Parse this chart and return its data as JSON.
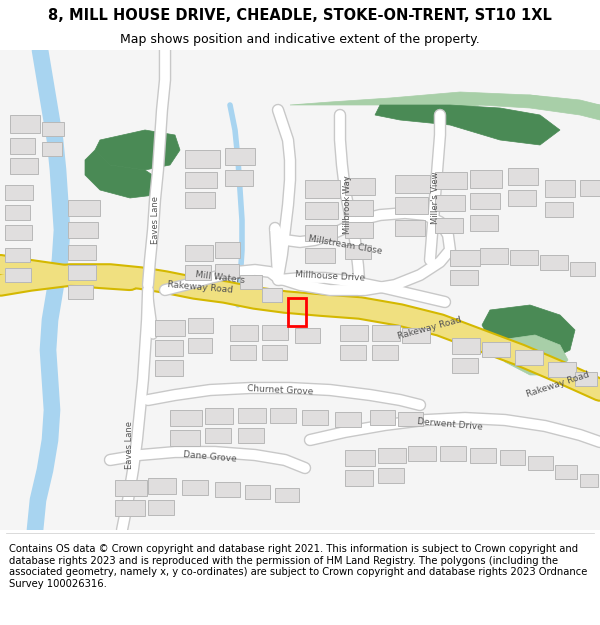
{
  "title": "8, MILL HOUSE DRIVE, CHEADLE, STOKE-ON-TRENT, ST10 1XL",
  "subtitle": "Map shows position and indicative extent of the property.",
  "footer": "Contains OS data © Crown copyright and database right 2021. This information is subject to Crown copyright and database rights 2023 and is reproduced with the permission of HM Land Registry. The polygons (including the associated geometry, namely x, y co-ordinates) are subject to Crown copyright and database rights 2023 Ordnance Survey 100026316.",
  "map_bg": "#f5f5f5",
  "road_major_color": "#f0e080",
  "road_major_outline": "#d4b800",
  "road_minor_color": "#ffffff",
  "road_minor_outline": "#c8c8c8",
  "building_color": "#e0dede",
  "building_outline": "#b8b8b8",
  "green_dark": "#4a8a55",
  "green_light": "#a8cfa8",
  "water_color": "#a8d4f0",
  "property_color": "#ff0000",
  "title_fontsize": 10.5,
  "subtitle_fontsize": 9,
  "footer_fontsize": 7.2,
  "label_color": "#555555",
  "label_fontsize": 6.5
}
